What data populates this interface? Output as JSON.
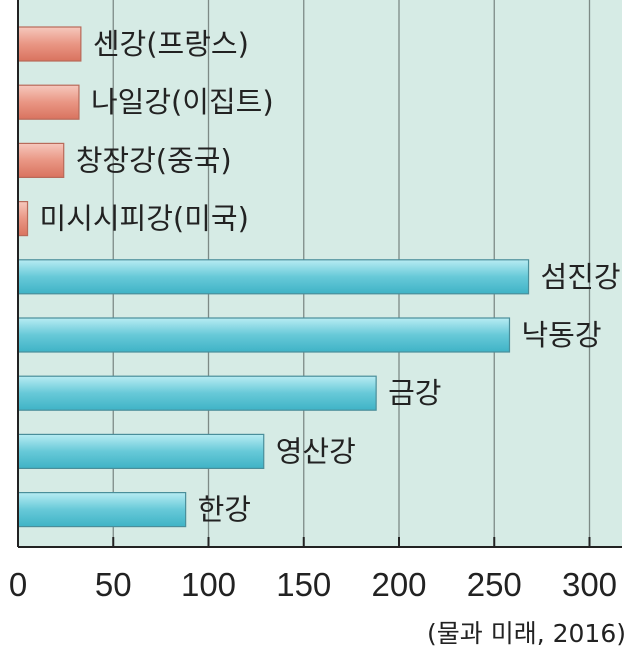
{
  "chart_data": {
    "type": "bar",
    "orientation": "horizontal",
    "categories": [
      "센강(프랑스)",
      "나일강(이집트)",
      "창장강(중국)",
      "미시시피강(미국)",
      "섬진강",
      "낙동강",
      "금강",
      "영산강",
      "한강"
    ],
    "values": [
      33,
      32,
      24,
      5,
      268,
      258,
      188,
      129,
      88
    ],
    "groups": [
      "foreign",
      "foreign",
      "foreign",
      "foreign",
      "korean",
      "korean",
      "korean",
      "korean",
      "korean"
    ],
    "xlim": [
      0,
      320
    ],
    "xticks": [
      0,
      50,
      100,
      150,
      200,
      250,
      300
    ],
    "grid": true,
    "colors": {
      "plot_background": "#d6ebe5",
      "foreign_bar": "#e99684",
      "korean_bar": "#67c9d8",
      "gridline": "#7d8a86",
      "axis": "#222222"
    }
  },
  "source_note": "(물과 미래, 2016)"
}
